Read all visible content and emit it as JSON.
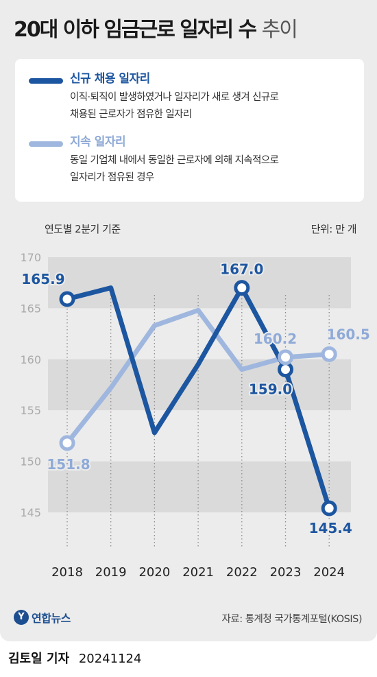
{
  "title": {
    "main": "20대 이하 임금근로 일자리 수",
    "light": "추이"
  },
  "legend": [
    {
      "title": "신규 채용 일자리",
      "color": "#1d56a0",
      "desc_lines": [
        "이직·퇴직이 발생하였거나 일자리가 새로 생겨 신규로",
        "채용된 근로자가 점유한 일자리"
      ]
    },
    {
      "title": "지속 일자리",
      "color": "#9fb7de",
      "desc_lines": [
        "동일 기업체 내에서 동일한 근로자에 의해 지속적으로",
        "일자리가 점유된 경우"
      ]
    }
  ],
  "subtitle_left": "연도별 2분기 기준",
  "subtitle_right": "단위: 만 개",
  "chart_data": {
    "type": "line",
    "categories": [
      "2018",
      "2019",
      "2020",
      "2021",
      "2022",
      "2023",
      "2024"
    ],
    "series": [
      {
        "name": "신규 채용 일자리",
        "color": "#1d56a0",
        "values": [
          165.9,
          167.0,
          152.8,
          159.5,
          167.0,
          159.0,
          145.4
        ]
      },
      {
        "name": "지속 일자리",
        "color": "#9fb7de",
        "values": [
          151.8,
          157.2,
          163.3,
          164.8,
          159.0,
          160.2,
          160.5
        ]
      }
    ],
    "labels": [
      {
        "series": 0,
        "index": 0,
        "text": "165.9"
      },
      {
        "series": 0,
        "index": 4,
        "text": "167.0"
      },
      {
        "series": 0,
        "index": 5,
        "text": "159.0"
      },
      {
        "series": 0,
        "index": 6,
        "text": "145.4"
      },
      {
        "series": 1,
        "index": 0,
        "text": "151.8"
      },
      {
        "series": 1,
        "index": 5,
        "text": "160.2"
      },
      {
        "series": 1,
        "index": 6,
        "text": "160.5"
      }
    ],
    "y_ticks": [
      "170",
      "165",
      "160",
      "155",
      "150",
      "145"
    ],
    "ylim": [
      145,
      170
    ],
    "grid": "banded"
  },
  "footer": {
    "logo_mark": "Y",
    "logo_text": "연합뉴스",
    "source": "자료: 통계청 국가통계포털(KOSIS)"
  },
  "credit": {
    "name": "김토일 기자",
    "date": "20241124"
  }
}
